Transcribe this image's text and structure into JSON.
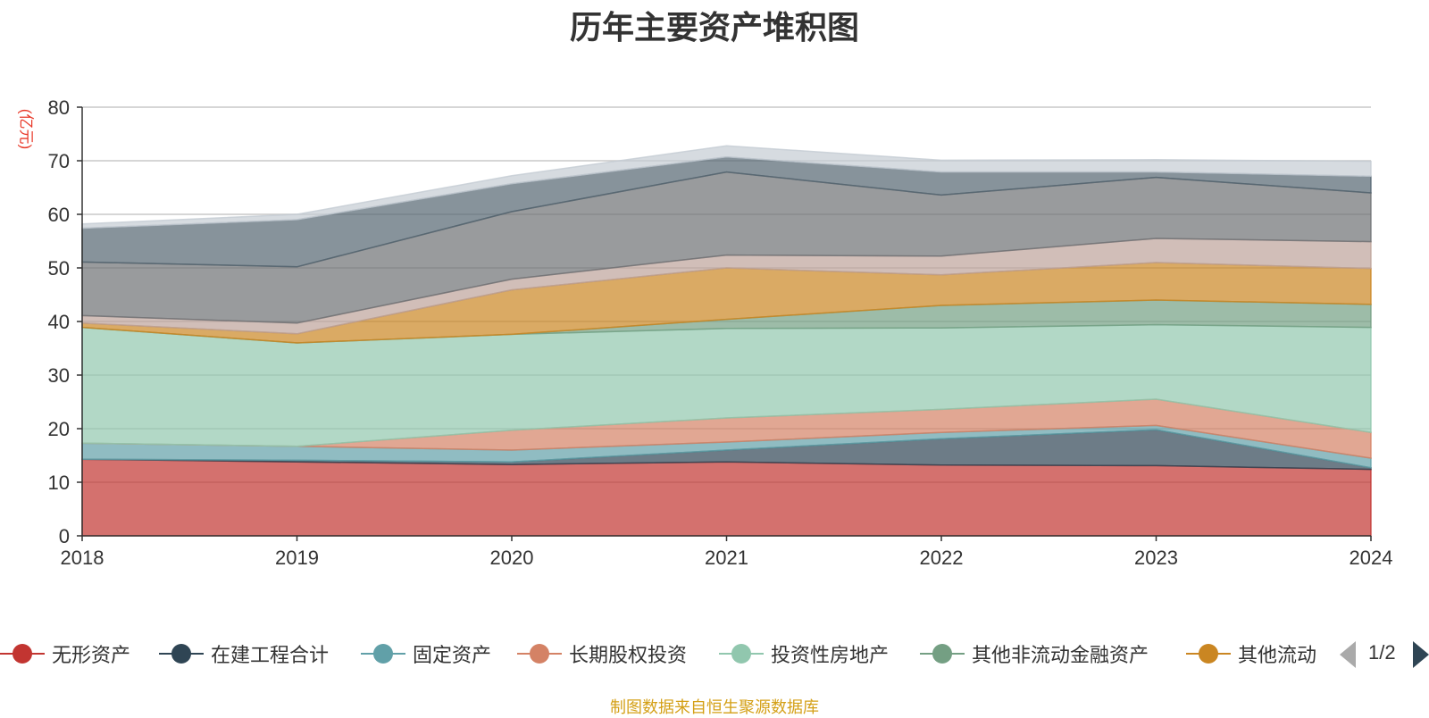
{
  "chart_data": {
    "type": "area",
    "stacked": true,
    "title": "历年主要资产堆积图",
    "ylabel": "(亿元)",
    "xlabel": "",
    "x": [
      "2018",
      "2019",
      "2020",
      "2021",
      "2022",
      "2023",
      "2024"
    ],
    "yticks": [
      0,
      10,
      20,
      30,
      40,
      50,
      60,
      70,
      80
    ],
    "ylim": [
      0,
      80
    ],
    "grid": true,
    "series": [
      {
        "name": "无形资产",
        "color": "#c23531",
        "values": [
          14.3,
          13.8,
          13.3,
          13.8,
          13.2,
          13.1,
          12.4
        ]
      },
      {
        "name": "在建工程合计",
        "color": "#2f4554",
        "values": [
          0.0,
          0.3,
          0.5,
          2.2,
          4.9,
          6.7,
          0.3
        ]
      },
      {
        "name": "固定资产",
        "color": "#61a0a8",
        "values": [
          3.0,
          2.6,
          2.2,
          1.5,
          1.2,
          0.8,
          1.8
        ]
      },
      {
        "name": "长期股权投资",
        "color": "#d48265",
        "values": [
          0.0,
          0.0,
          3.7,
          4.5,
          4.3,
          4.9,
          4.8
        ]
      },
      {
        "name": "投资性房地产",
        "color": "#91c7ae",
        "values": [
          21.6,
          19.3,
          17.9,
          16.7,
          15.2,
          13.9,
          19.6
        ]
      },
      {
        "name": "其他非流动金融资产",
        "color": "#749f83",
        "values": [
          0.0,
          0.0,
          0.0,
          1.7,
          4.2,
          4.6,
          4.3
        ]
      },
      {
        "name": "其他流动",
        "color": "#ca8622",
        "values": [
          0.8,
          1.7,
          8.3,
          9.6,
          5.7,
          7.0,
          6.7
        ]
      },
      {
        "color": "#bda29a",
        "values": [
          1.4,
          2.0,
          2.0,
          2.4,
          3.5,
          4.5,
          5.0
        ]
      },
      {
        "color": "#6e7074",
        "values": [
          10.0,
          10.5,
          12.6,
          15.5,
          11.4,
          11.4,
          9.1
        ]
      },
      {
        "color": "#546570",
        "values": [
          6.3,
          8.8,
          5.2,
          2.8,
          4.3,
          1.0,
          3.1
        ]
      },
      {
        "color": "#c4ccd3",
        "values": [
          0.8,
          1.0,
          1.5,
          2.1,
          2.2,
          2.3,
          2.8
        ]
      }
    ],
    "legend_position": "bottom",
    "legend_page": "1/2"
  },
  "source": "制图数据来自恒生聚源数据库"
}
